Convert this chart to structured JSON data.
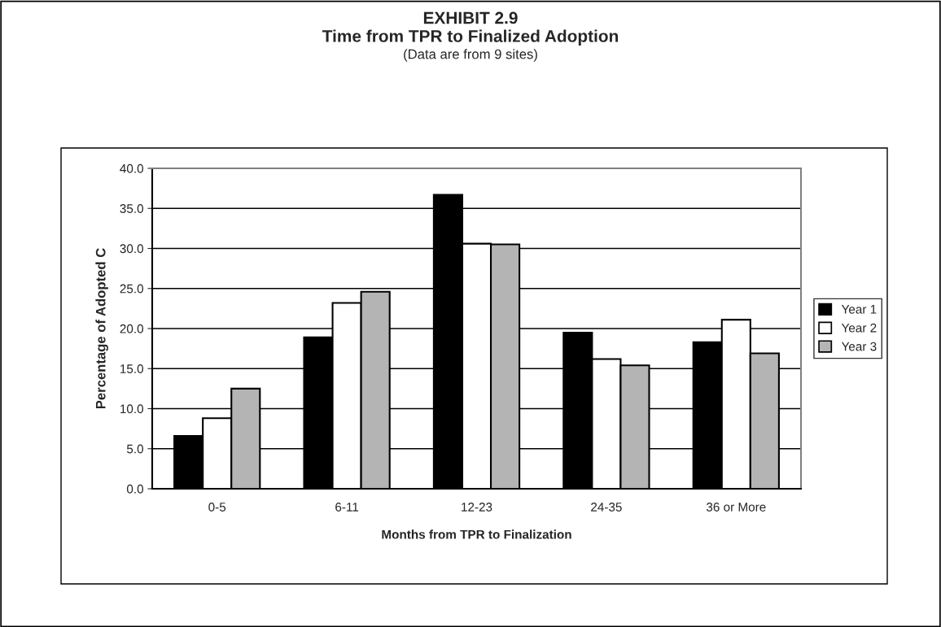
{
  "chart_data": {
    "type": "bar",
    "title": "EXHIBIT 2.9\nTime from TPR to Finalized Adoption",
    "subtitle": "(Data are from 9 sites)",
    "xlabel": "Months from TPR to Finalization",
    "ylabel": "Percentage of Adopted C",
    "categories": [
      "0-5",
      "6-11",
      "12-23",
      "24-35",
      "36 or More"
    ],
    "series": [
      {
        "name": "Year 1",
        "color": "#000000",
        "values": [
          6.6,
          18.9,
          36.7,
          19.5,
          18.3
        ]
      },
      {
        "name": "Year 2",
        "color": "#ffffff",
        "values": [
          8.8,
          23.2,
          30.6,
          16.2,
          21.1
        ]
      },
      {
        "name": "Year 3",
        "color": "#b4b4b4",
        "values": [
          12.5,
          24.6,
          30.5,
          15.4,
          16.9
        ]
      }
    ],
    "ylim": [
      0,
      40
    ],
    "yticks": [
      {
        "value": 0,
        "label": "0.0"
      },
      {
        "value": 5,
        "label": "5.0"
      },
      {
        "value": 10,
        "label": "10.0"
      },
      {
        "value": 15,
        "label": "15.0"
      },
      {
        "value": 20,
        "label": "20.0"
      },
      {
        "value": 25,
        "label": "25.0"
      },
      {
        "value": 30,
        "label": "30.0"
      },
      {
        "value": 35,
        "label": "35.0"
      },
      {
        "value": 40,
        "label": "40.0"
      }
    ],
    "grid": "y",
    "legend": "right"
  }
}
